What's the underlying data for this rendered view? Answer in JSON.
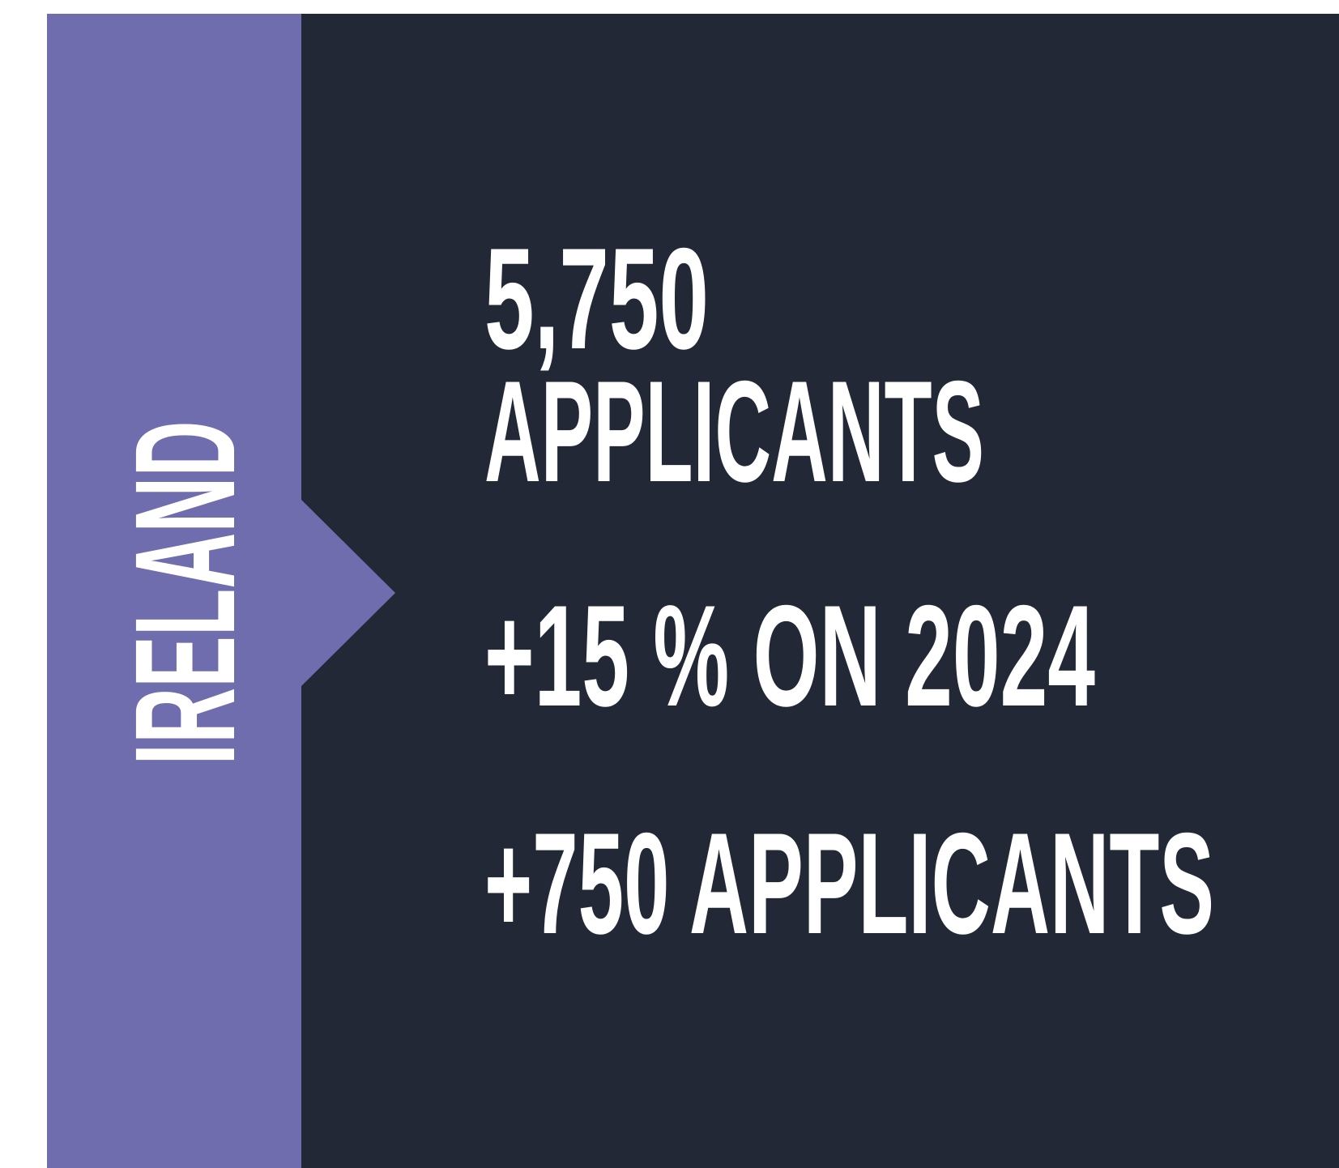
{
  "panel": {
    "country": "IRELAND",
    "lines": [
      "5,750",
      "APPLICANTS",
      "+15 % ON 2024",
      "+750 APPLICANTS"
    ]
  }
}
